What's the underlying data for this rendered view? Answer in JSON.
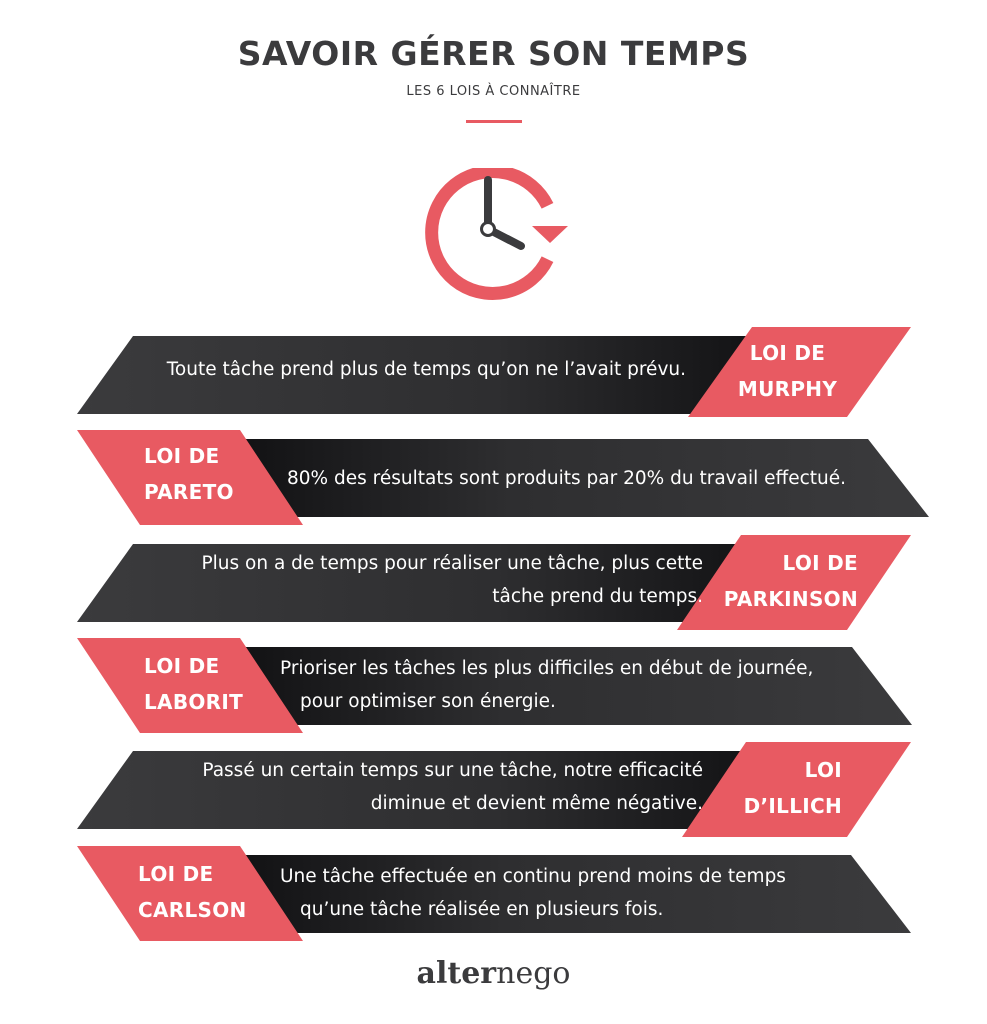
{
  "header": {
    "title": "SAVOIR GÉRER SON TEMPS",
    "subtitle": "LES 6 LOIS À CONNAÎTRE"
  },
  "icon": "clock-refresh-icon",
  "colors": {
    "accent": "#e85a62",
    "dark": "#3b3b3d",
    "text": "#ffffff"
  },
  "laws": [
    {
      "name_line1": "LOI DE",
      "name_line2": "MURPHY",
      "desc_line1": "Toute tâche prend plus de temps qu’on ne l’avait prévu.",
      "desc_line2": ""
    },
    {
      "name_line1": "LOI DE",
      "name_line2": "PARETO",
      "desc_line1": "80% des résultats sont produits par 20% du travail effectué.",
      "desc_line2": ""
    },
    {
      "name_line1": "LOI DE",
      "name_line2": "PARKINSON",
      "desc_line1": "Plus on a de temps pour réaliser une tâche, plus cette",
      "desc_line2": "tâche prend du temps."
    },
    {
      "name_line1": "LOI DE",
      "name_line2": "LABORIT",
      "desc_line1": "Prioriser les tâches les plus difficiles en début de journée,",
      "desc_line2": "pour optimiser son énergie."
    },
    {
      "name_line1": "LOI",
      "name_line2": "D’ILLICH",
      "desc_line1": "Passé un certain temps sur une tâche, notre efficacité",
      "desc_line2": "diminue et devient même négative."
    },
    {
      "name_line1": "LOI DE",
      "name_line2": "CARLSON",
      "desc_line1": "Une tâche effectuée en continu prend moins de temps",
      "desc_line2": "qu’une tâche réalisée en plusieurs fois."
    }
  ],
  "logo": {
    "part1": "alter",
    "part2": "nego"
  }
}
